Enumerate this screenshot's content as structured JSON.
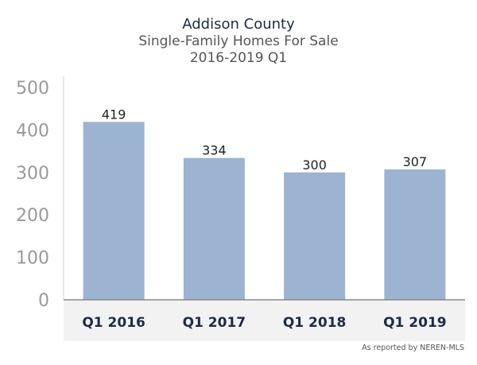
{
  "chart_data": {
    "type": "bar",
    "title": "Addison County",
    "subtitle": "Single-Family Homes For Sale",
    "subtitle2": "2016-2019 Q1",
    "categories": [
      "Q1 2016",
      "Q1 2017",
      "Q1 2018",
      "Q1 2019"
    ],
    "values": [
      419,
      334,
      300,
      307
    ],
    "value_labels": [
      "419",
      "334",
      "300",
      "307"
    ],
    "y_ticks": [
      0,
      100,
      200,
      300,
      400,
      500
    ],
    "y_tick_labels": [
      "0",
      "100",
      "200",
      "300",
      "400",
      "500"
    ],
    "ylim": [
      0,
      500
    ],
    "xlabel": "",
    "ylabel": "",
    "grid": false,
    "legend": "none",
    "colors": {
      "bar": "#9db3d2",
      "category_band": "#f2f2f2",
      "axis": "#888888",
      "tick_text": "#999999",
      "value_text": "#222222",
      "category_text": "#1f2a44"
    }
  },
  "source_note": "As reported by NEREN-MLS"
}
